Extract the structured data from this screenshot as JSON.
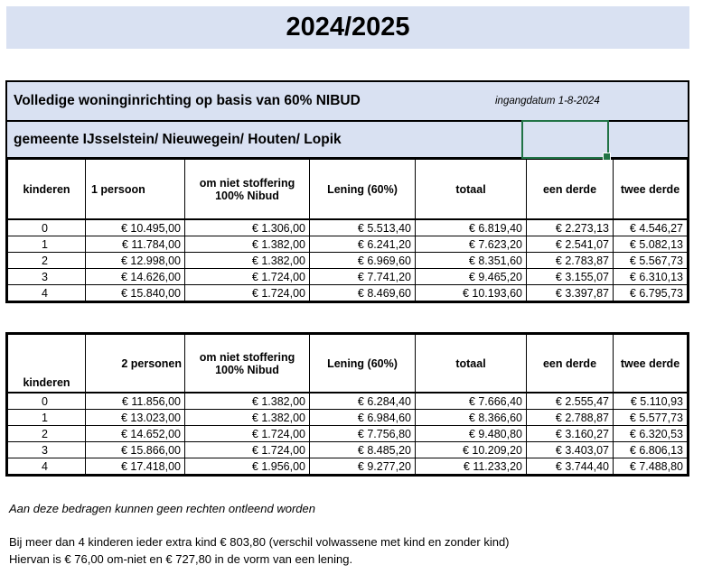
{
  "banner": {
    "title": "2024/2025"
  },
  "sheet": {
    "title": "Volledige woninginrichting op basis van 60% NIBUD",
    "date_note": "ingangdatum 1-8-2024",
    "municipalities": "gemeente IJsselstein/ Nieuwegein/ Houten/ Lopik"
  },
  "tables": [
    {
      "name": "1 persoon",
      "columns": [
        "kinderen",
        "1 persoon",
        "om niet stoffering 100% Nibud",
        "Lening (60%)",
        "totaal",
        "een derde",
        "twee derde"
      ],
      "rows": [
        [
          "0",
          "€ 10.495,00",
          "€ 1.306,00",
          "€ 5.513,40",
          "€ 6.819,40",
          "€ 2.273,13",
          "€ 4.546,27"
        ],
        [
          "1",
          "€ 11.784,00",
          "€ 1.382,00",
          "€ 6.241,20",
          "€ 7.623,20",
          "€ 2.541,07",
          "€ 5.082,13"
        ],
        [
          "2",
          "€ 12.998,00",
          "€ 1.382,00",
          "€ 6.969,60",
          "€ 8.351,60",
          "€ 2.783,87",
          "€ 5.567,73"
        ],
        [
          "3",
          "€ 14.626,00",
          "€ 1.724,00",
          "€ 7.741,20",
          "€ 9.465,20",
          "€ 3.155,07",
          "€ 6.310,13"
        ],
        [
          "4",
          "€ 15.840,00",
          "€ 1.724,00",
          "€ 8.469,60",
          "€ 10.193,60",
          "€ 3.397,87",
          "€ 6.795,73"
        ]
      ]
    },
    {
      "name": "2 personen",
      "columns": [
        "kinderen",
        "2 personen",
        "om niet stoffering 100% Nibud",
        "Lening (60%)",
        "totaal",
        "een derde",
        "twee derde"
      ],
      "rows": [
        [
          "0",
          "€ 11.856,00",
          "€ 1.382,00",
          "€ 6.284,40",
          "€ 7.666,40",
          "€ 2.555,47",
          "€ 5.110,93"
        ],
        [
          "1",
          "€ 13.023,00",
          "€ 1.382,00",
          "€ 6.984,60",
          "€ 8.366,60",
          "€ 2.788,87",
          "€ 5.577,73"
        ],
        [
          "2",
          "€ 14.652,00",
          "€ 1.724,00",
          "€ 7.756,80",
          "€ 9.480,80",
          "€ 3.160,27",
          "€ 6.320,53"
        ],
        [
          "3",
          "€ 15.866,00",
          "€ 1.724,00",
          "€ 8.485,20",
          "€ 10.209,20",
          "€ 3.403,07",
          "€ 6.806,13"
        ],
        [
          "4",
          "€ 17.418,00",
          "€ 1.956,00",
          "€ 9.277,20",
          "€ 11.233,20",
          "€ 3.744,40",
          "€ 7.488,80"
        ]
      ]
    }
  ],
  "footer": {
    "disclaimer": "Aan deze bedragen kunnen geen rechten ontleend worden",
    "note1": "Bij meer dan 4 kinderen ieder extra kind € 803,80 (verschil volwassene met kind en zonder kind)",
    "note2": "Hiervan is € 76,00 om-niet en € 727,80 in de vorm van een lening."
  },
  "colors": {
    "light_blue": "#D9E1F2",
    "orange": "#F8CBAD",
    "selection_green": "#217346",
    "border_black": "#000000"
  }
}
